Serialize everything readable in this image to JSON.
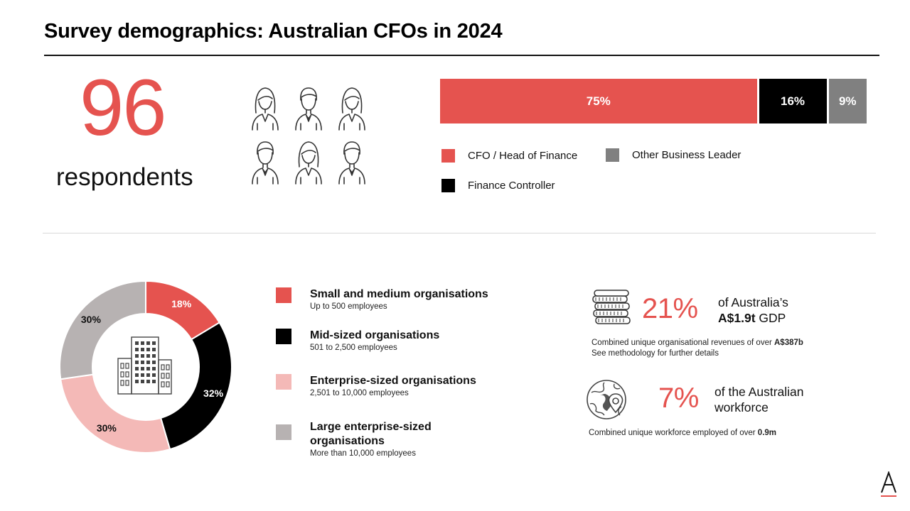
{
  "title": "Survey demographics: Australian CFOs in 2024",
  "respondents": {
    "count": "96",
    "label": "respondents",
    "icon": "person-icon"
  },
  "colors": {
    "red": "#e5534f",
    "black": "#000000",
    "grey": "#808080",
    "pink": "#f4b9b7",
    "lightgrey": "#b7b2b2"
  },
  "chart_data": [
    {
      "type": "bar",
      "orientation": "horizontal-stacked",
      "unit": "%",
      "series": [
        {
          "name": "CFO / Head of Finance",
          "value": 75,
          "label": "75%",
          "color": "#e5534f"
        },
        {
          "name": "Finance Controller",
          "value": 16,
          "label": "16%",
          "color": "#000000"
        },
        {
          "name": "Other Business Leader",
          "value": 9,
          "label": "9%",
          "color": "#808080"
        }
      ]
    },
    {
      "type": "pie",
      "variant": "donut",
      "unit": "%",
      "center_icon": "building-icon",
      "slices": [
        {
          "name": "Small and medium organisations",
          "sub": "Up to 500 employees",
          "value": 18,
          "label": "18%",
          "color": "#e5534f"
        },
        {
          "name": "Mid-sized organisations",
          "sub": "501 to 2,500 employees",
          "value": 32,
          "label": "32%",
          "color": "#000000"
        },
        {
          "name": "Enterprise-sized organisations",
          "sub": "2,501 to 10,000 employees",
          "value": 30,
          "label": "30%",
          "color": "#f4b9b7"
        },
        {
          "name": "Large enterprise-sized organisations",
          "sub": "More than 10,000 employees",
          "value": 30,
          "label": "30%",
          "color": "#b7b2b2"
        }
      ]
    }
  ],
  "stats": {
    "gdp": {
      "icon": "coins-icon",
      "pct": "21%",
      "line1": "of Australia’s",
      "line2_bold": "A$1.9t",
      "line2_rest": " GDP",
      "note_line1": "Combined unique organisational revenues of over ",
      "note_line1_bold": "A$387b",
      "note_line2": "See methodology for further details"
    },
    "workforce": {
      "icon": "globe-pin-icon",
      "pct": "7%",
      "line1": "of the Australian",
      "line2": "workforce",
      "note": "Combined unique workforce employed of over ",
      "note_bold": "0.9m"
    }
  },
  "logo": {
    "icon": "brand-a-logo-icon",
    "letter": "A"
  }
}
